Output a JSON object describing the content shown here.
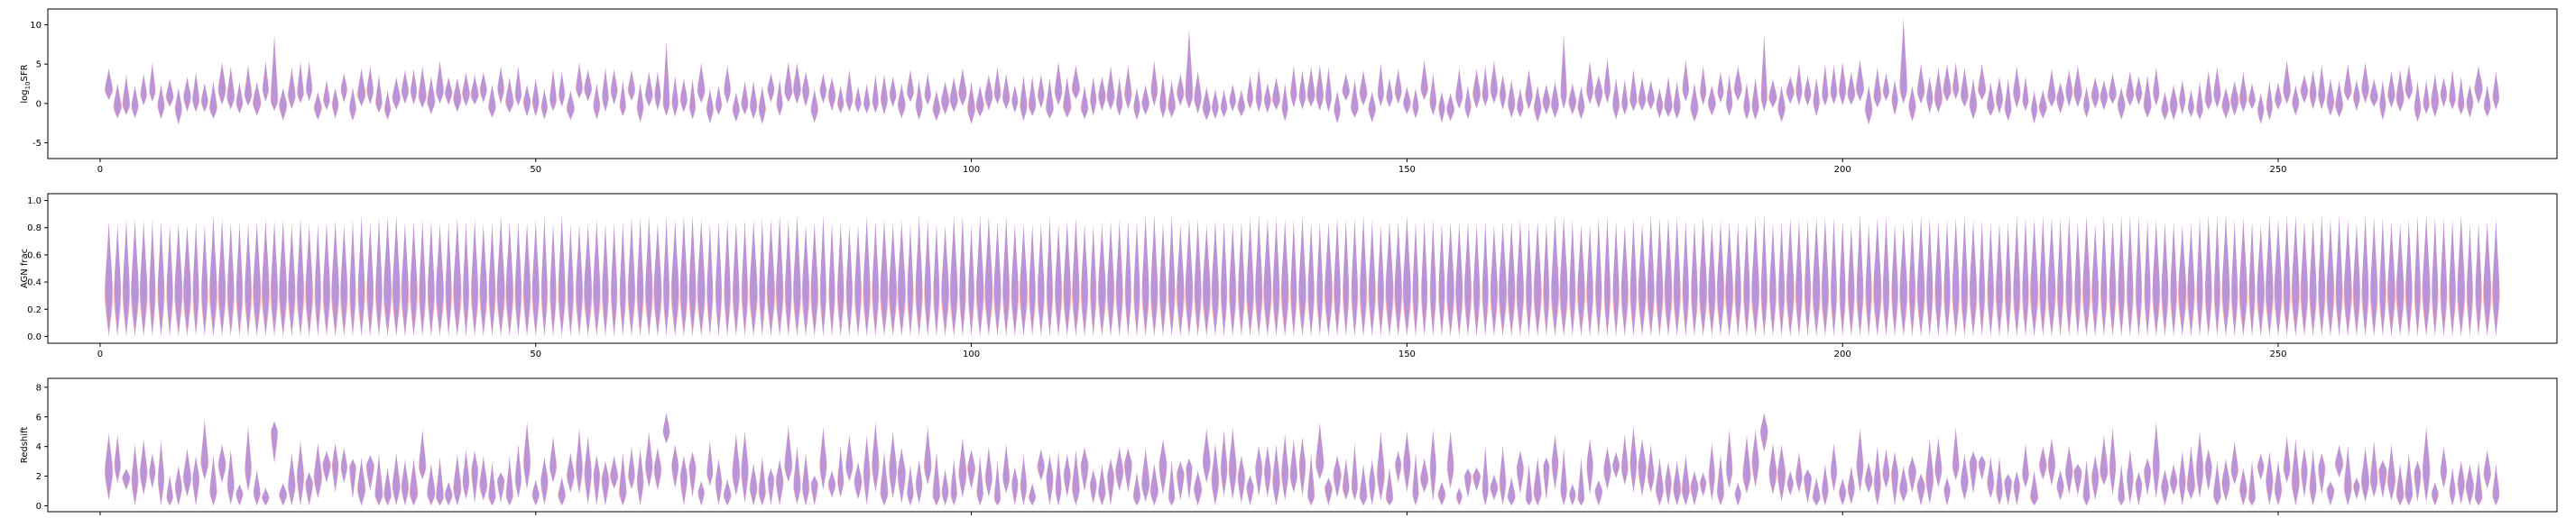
{
  "chart_data": [
    {
      "type": "violin",
      "ylabel_main": "log",
      "ylabel_sub": "10",
      "ylabel_tail": "SFR",
      "ylim": [
        -7,
        12
      ],
      "xlim": [
        -6,
        282
      ],
      "xticks": [
        0,
        50,
        100,
        150,
        200,
        250
      ],
      "yticks": [
        -5,
        0,
        5,
        10
      ],
      "n_violins": 275,
      "series": [
        {
          "name": "",
          "color": "#ff6666"
        },
        {
          "name": "",
          "color": "#6666ff"
        }
      ],
      "median_range": [
        -0.8,
        2.6
      ],
      "spike_outliers": [
        20,
        65,
        125,
        168,
        191,
        207
      ]
    },
    {
      "type": "violin",
      "ylabel": "AGN frac",
      "ylim": [
        -0.05,
        1.05
      ],
      "xlim": [
        -6,
        282
      ],
      "xticks": [
        0,
        50,
        100,
        150,
        200,
        250
      ],
      "yticks": [
        0.0,
        0.2,
        0.4,
        0.6,
        0.8,
        1.0
      ],
      "n_violins": 275,
      "series": [
        {
          "name": "",
          "color": "#ff6666"
        },
        {
          "name": "",
          "color": "#6666ff"
        }
      ],
      "value_range": [
        0.0,
        0.9
      ]
    },
    {
      "type": "violin",
      "ylabel": "Redshift",
      "ylim": [
        -0.4,
        8.6
      ],
      "xlim": [
        -6,
        282
      ],
      "xticks": [
        0,
        50,
        100,
        150,
        200,
        250
      ],
      "yticks": [
        0,
        2,
        4,
        6,
        8
      ],
      "n_violins": 275,
      "series": [
        {
          "name": "",
          "color": "#ff6666"
        },
        {
          "name": "",
          "color": "#6666ff"
        }
      ],
      "value_range": [
        0.0,
        6.3
      ],
      "high_points": [
        20,
        65,
        191
      ]
    }
  ]
}
